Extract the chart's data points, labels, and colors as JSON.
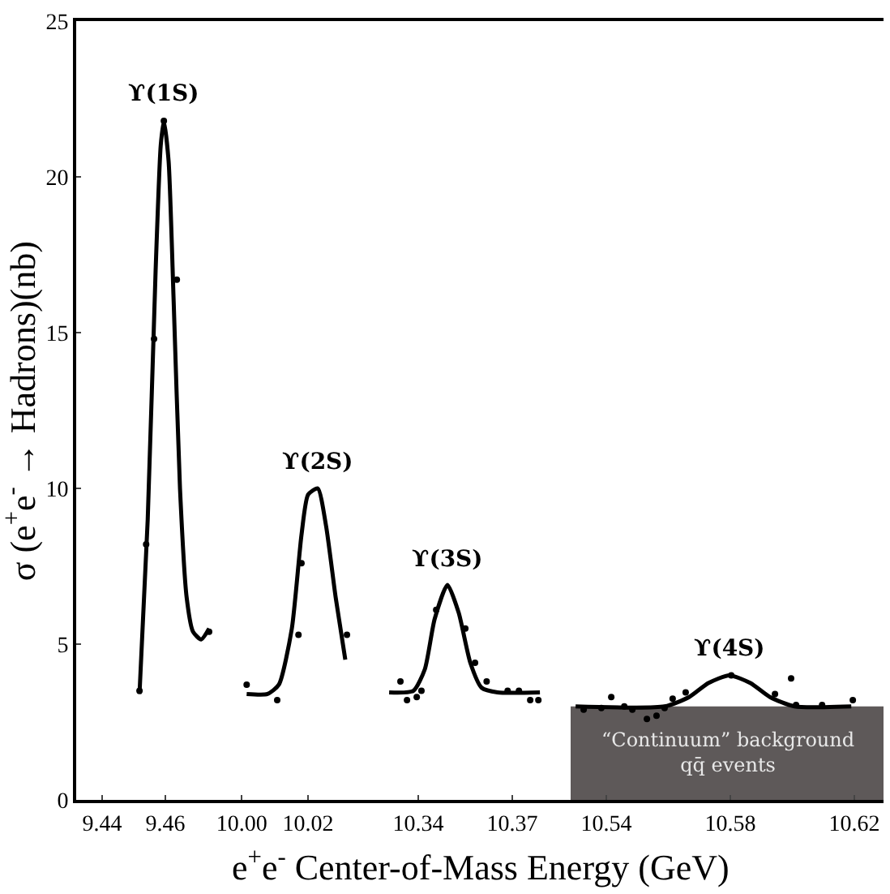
{
  "chart_data": [
    {
      "type": "line",
      "ylabel": "σ (e$^{+}$e$^{-}$ → Hadrons)(nb)",
      "xlabel": "e$^{+}$e$^{-}$ Center-of-Mass Energy (GeV)",
      "xlim": [
        9.4318,
        9.4779
      ],
      "xticks": [
        9.44,
        9.46
      ],
      "ylim": [
        0,
        25
      ],
      "yticks": [
        0,
        5,
        10,
        15,
        20,
        25
      ],
      "grid": false,
      "series": [
        {
          "color": "#000000",
          "marker": "none",
          "x": [
            9.4518,
            9.4544,
            9.4569,
            9.4585,
            9.4595,
            9.461,
            9.4626,
            9.4646,
            9.4667,
            9.4687,
            9.4713,
            9.4738
          ],
          "values": [
            3.4,
            9,
            17,
            21,
            21.8,
            20.5,
            16,
            10,
            6.5,
            5.4,
            5.15,
            5.5
          ]
        },
        {
          "type": "scatter",
          "color": "#000000",
          "marker": "circle",
          "x": [
            9.4518,
            9.4539,
            9.4564,
            9.4595,
            9.4636,
            9.4738
          ],
          "values": [
            3.5,
            8.2,
            14.8,
            21.8,
            16.7,
            5.4
          ]
        }
      ],
      "annotations": [
        {
          "text": "ϒ(1S)",
          "x": 9.4595,
          "y": 21.8
        }
      ]
    },
    {
      "type": "line",
      "tick_labels": "x",
      "xlim": [
        9.9941,
        10.0395
      ],
      "xticks": [
        {
          "value": 10.0,
          "label": "10.00"
        },
        10.02
      ],
      "ylim": [
        0,
        25
      ],
      "yticks": [
        0,
        5,
        10,
        15,
        20,
        25
      ],
      "grid": false,
      "series": [
        {
          "color": "#000000",
          "marker": "none",
          "x": [
            10.0015,
            10.0078,
            10.0112,
            10.0151,
            10.018,
            10.02,
            10.0229,
            10.0254,
            10.0283,
            10.0312
          ],
          "values": [
            3.4,
            3.4,
            3.7,
            5.5,
            8.5,
            9.8,
            10.0,
            8.8,
            6.5,
            4.5
          ]
        },
        {
          "type": "scatter",
          "color": "#000000",
          "marker": "circle",
          "x": [
            10.0015,
            10.0107,
            10.0171,
            10.018,
            10.0317
          ],
          "values": [
            3.7,
            3.2,
            5.3,
            7.6,
            5.3
          ]
        }
      ],
      "annotations": [
        {
          "text": "ϒ(2S)",
          "x": 10.0229,
          "y": 10.0
        }
      ]
    },
    {
      "type": "line",
      "tick_labels": "x",
      "xlim": [
        10.3255,
        10.3886
      ],
      "xticks": [
        10.34,
        10.37
      ],
      "ylim": [
        0,
        25
      ],
      "yticks": [
        0,
        5,
        10,
        15,
        20,
        25
      ],
      "grid": false,
      "series": [
        {
          "color": "#000000",
          "marker": "none",
          "x": [
            10.3307,
            10.3384,
            10.3421,
            10.3452,
            10.3493,
            10.3529,
            10.3566,
            10.3602,
            10.3653,
            10.3788
          ],
          "values": [
            3.45,
            3.5,
            4.2,
            5.8,
            6.9,
            6.0,
            4.4,
            3.6,
            3.45,
            3.45
          ]
        },
        {
          "type": "scatter",
          "color": "#000000",
          "marker": "circle",
          "x": [
            10.3343,
            10.3364,
            10.3395,
            10.341,
            10.3457,
            10.355,
            10.3581,
            10.3618,
            10.3685,
            10.3721,
            10.3757,
            10.3783
          ],
          "values": [
            3.8,
            3.2,
            3.3,
            3.5,
            6.1,
            5.5,
            4.4,
            3.8,
            3.5,
            3.5,
            3.2,
            3.2
          ]
        }
      ],
      "annotations": [
        {
          "text": "ϒ(3S)",
          "x": 10.3493,
          "y": 6.9
        }
      ]
    },
    {
      "type": "line",
      "tick_labels": "x",
      "xlim": [
        10.5285,
        10.6294
      ],
      "xticks": [
        10.54,
        10.58,
        10.62
      ],
      "ylim": [
        0,
        25
      ],
      "yticks": [
        0,
        5,
        10,
        15,
        20,
        25
      ],
      "grid": false,
      "bands": [
        {
          "axis": "y",
          "from": 0,
          "to": 3.0,
          "label": "“Continuum” background\nqq̄ events",
          "color": "#5e5959"
        }
      ],
      "series": [
        {
          "color": "#000000",
          "marker": "none",
          "x": [
            10.5301,
            10.5588,
            10.5667,
            10.5729,
            10.5797,
            10.5865,
            10.5928,
            10.6007,
            10.619
          ],
          "values": [
            3.0,
            3.0,
            3.3,
            3.75,
            4.0,
            3.75,
            3.3,
            3.0,
            3.0
          ]
        },
        {
          "type": "scatter",
          "color": "#000000",
          "marker": "circle",
          "x": [
            10.5327,
            10.5384,
            10.5416,
            10.5458,
            10.5484,
            10.5531,
            10.5562,
            10.5588,
            10.5614,
            10.5656,
            10.5803,
            10.5944,
            10.5996,
            10.6012,
            10.6096,
            10.6195
          ],
          "values": [
            2.9,
            2.95,
            3.3,
            3.0,
            2.9,
            2.6,
            2.7,
            2.95,
            3.25,
            3.45,
            4.0,
            3.4,
            3.9,
            3.05,
            3.05,
            3.2
          ]
        }
      ],
      "annotations": [
        {
          "text": "ϒ(4S)",
          "x": 10.5797,
          "y": 4.0
        }
      ]
    }
  ]
}
